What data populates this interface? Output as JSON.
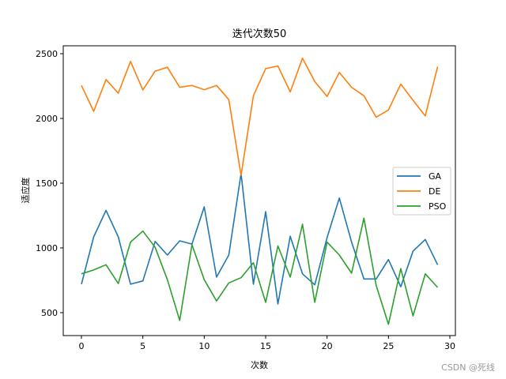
{
  "chart_data": {
    "type": "line",
    "title": "迭代次数50",
    "xlabel": "次数",
    "ylabel": "适应度",
    "xlim": [
      -1.48,
      30.45
    ],
    "ylim": [
      323,
      2561
    ],
    "xticks": [
      0,
      5,
      10,
      15,
      20,
      25,
      30
    ],
    "yticks": [
      500,
      1000,
      1500,
      2000,
      2500
    ],
    "grid": false,
    "legend_position": "center right",
    "x": [
      0,
      1,
      2,
      3,
      4,
      5,
      6,
      7,
      8,
      9,
      10,
      11,
      12,
      13,
      14,
      15,
      16,
      17,
      18,
      19,
      20,
      21,
      22,
      23,
      24,
      25,
      26,
      27,
      28,
      29
    ],
    "series": [
      {
        "name": "GA",
        "color": "#1f77b4",
        "values": [
          720,
          1085,
          1290,
          1085,
          720,
          745,
          1050,
          945,
          1055,
          1030,
          1317,
          775,
          945,
          1575,
          720,
          1280,
          567,
          1090,
          800,
          715,
          1080,
          1385,
          1045,
          760,
          760,
          910,
          700,
          975,
          1065,
          870
        ]
      },
      {
        "name": "DE",
        "color": "#ff7f0e",
        "values": [
          2255,
          2055,
          2300,
          2195,
          2440,
          2220,
          2365,
          2395,
          2240,
          2255,
          2222,
          2255,
          2145,
          1560,
          2175,
          2385,
          2405,
          2205,
          2465,
          2285,
          2170,
          2355,
          2240,
          2175,
          2010,
          2065,
          2265,
          2140,
          2020,
          2400
        ]
      },
      {
        "name": "PSO",
        "color": "#2ca02c",
        "values": [
          800,
          830,
          870,
          725,
          1045,
          1130,
          1005,
          755,
          440,
          1025,
          755,
          590,
          730,
          770,
          885,
          580,
          1015,
          775,
          1183,
          580,
          1045,
          945,
          805,
          1230,
          710,
          410,
          840,
          475,
          800,
          695
        ]
      }
    ]
  },
  "watermark": "CSDN @死线"
}
